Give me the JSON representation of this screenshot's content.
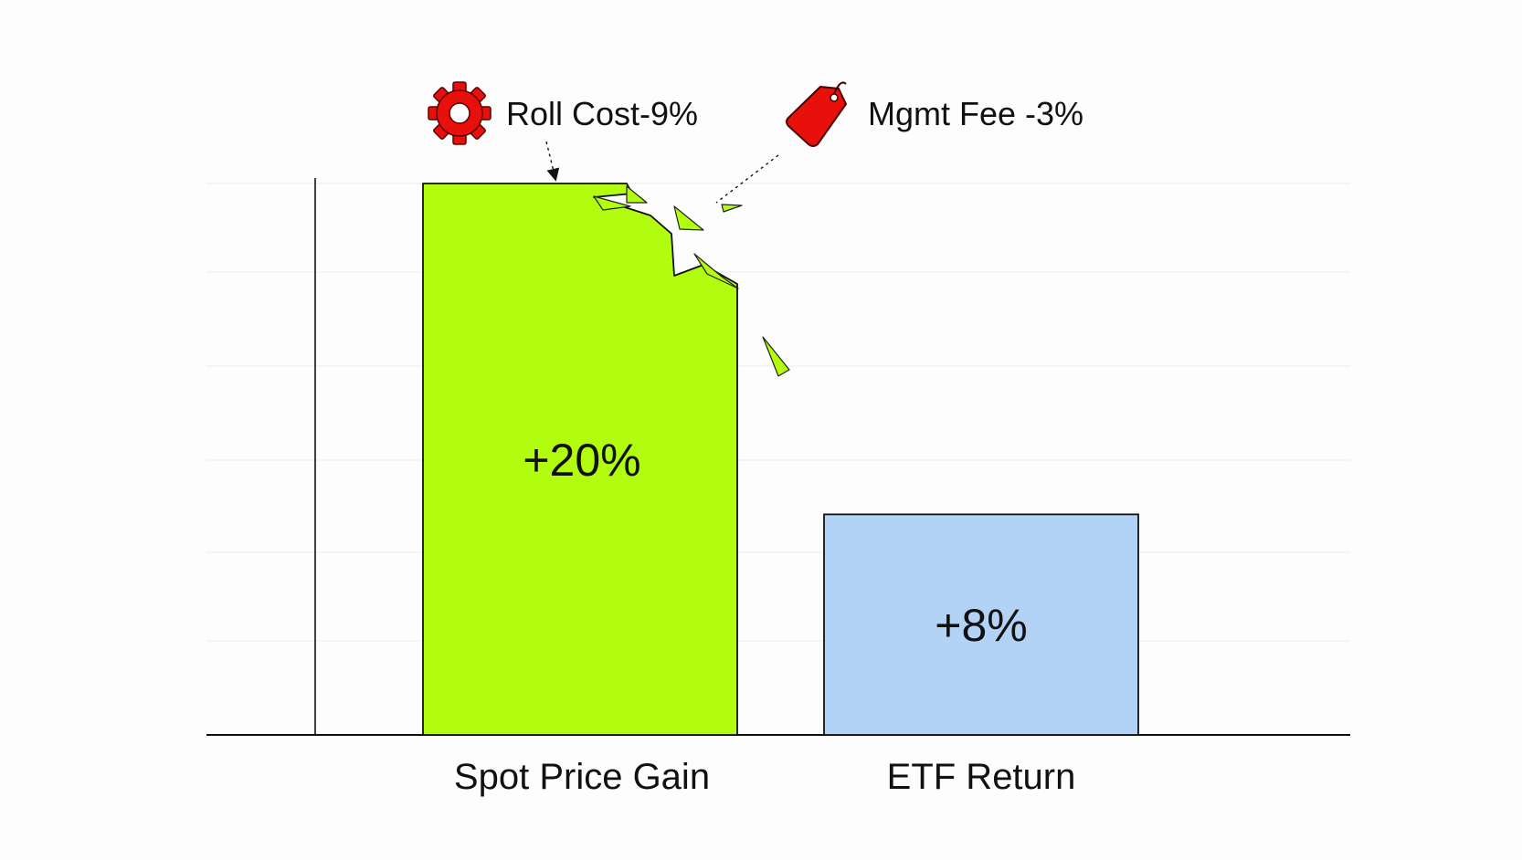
{
  "chart_data": {
    "type": "bar",
    "categories": [
      "Spot Price Gain",
      "ETF Return"
    ],
    "values": [
      20,
      8
    ],
    "value_labels": [
      "+20%",
      "+8%"
    ],
    "ylim": [
      0,
      20
    ],
    "grid": true,
    "colors": {
      "spot_bar": "#b2fc0f",
      "etf_bar": "#b3d3f6",
      "axis": "#111111",
      "grid": "#eeeeee",
      "gear_icon": "#e8100a",
      "tag_icon": "#e8100a"
    },
    "annotations": [
      {
        "text": "Roll Cost-9%",
        "value": -9,
        "icon": "gear-icon"
      },
      {
        "text": "Mgmt Fee -3%",
        "value": -3,
        "icon": "price-tag-icon"
      }
    ]
  }
}
